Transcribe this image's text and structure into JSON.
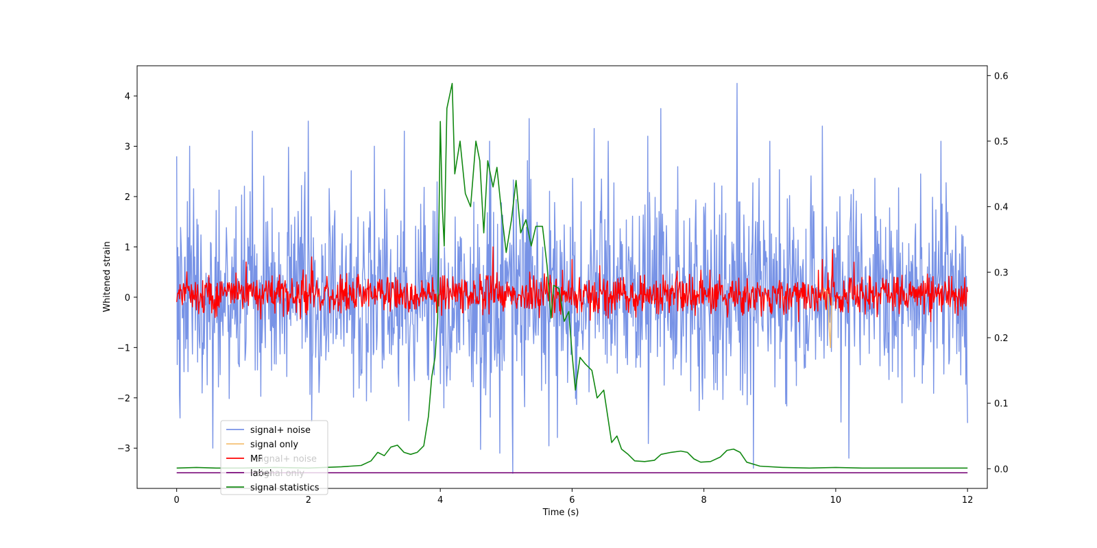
{
  "chart_data": {
    "type": "line",
    "xlabel": "Time (s)",
    "ylabel": "Whitened strain",
    "xlim": [
      -0.6,
      12.3
    ],
    "ylim": [
      -3.8,
      4.6
    ],
    "y2lim": [
      -0.03,
      0.615
    ],
    "x_ticks": [
      0,
      2,
      4,
      6,
      8,
      10,
      12
    ],
    "y_ticks": [
      -3,
      -2,
      -1,
      0,
      1,
      2,
      3,
      4
    ],
    "y2_ticks": [
      0.0,
      0.1,
      0.2,
      0.3,
      0.4,
      0.5,
      0.6
    ],
    "grid": false,
    "legend_position": "lower-left",
    "ghost_legend_text": [
      "signal+ noise",
      "signal only"
    ],
    "series": [
      {
        "name": "signal+ noise",
        "color": "#7893e6",
        "axis": "left",
        "kind": "noise",
        "x_range": [
          0,
          12
        ],
        "envelope_95": [
          -2.0,
          2.1
        ],
        "spikes": [
          [
            0.0,
            2.8
          ],
          [
            0.05,
            -2.4
          ],
          [
            0.2,
            3.0
          ],
          [
            0.55,
            -3.0
          ],
          [
            1.15,
            3.3
          ],
          [
            2.0,
            3.5
          ],
          [
            3.0,
            3.0
          ],
          [
            3.45,
            3.3
          ],
          [
            4.75,
            3.1
          ],
          [
            4.9,
            -3.1
          ],
          [
            5.1,
            -3.5
          ],
          [
            5.35,
            3.55
          ],
          [
            6.55,
            3.1
          ],
          [
            7.15,
            3.2
          ],
          [
            7.35,
            3.75
          ],
          [
            8.5,
            4.25
          ],
          [
            8.75,
            -3.4
          ],
          [
            9.0,
            3.1
          ],
          [
            9.8,
            3.4
          ],
          [
            10.2,
            -3.2
          ],
          [
            11.6,
            3.1
          ],
          [
            12.0,
            -2.5
          ]
        ]
      },
      {
        "name": "signal only",
        "color": "#f5c172",
        "axis": "left",
        "kind": "chirp",
        "points": [
          [
            9.78,
            0.0
          ],
          [
            9.82,
            0.18
          ],
          [
            9.85,
            -0.25
          ],
          [
            9.88,
            0.35
          ],
          [
            9.9,
            -0.6
          ],
          [
            9.92,
            -1.0
          ],
          [
            9.94,
            0.0
          ]
        ]
      },
      {
        "name": "MF",
        "color": "#ff0000",
        "axis": "left",
        "kind": "noise",
        "x_range": [
          0,
          12
        ],
        "envelope_95": [
          -0.33,
          0.45
        ],
        "spikes": [
          [
            1.05,
            0.7
          ],
          [
            2.05,
            0.8
          ],
          [
            4.8,
            1.0
          ],
          [
            6.0,
            0.75
          ],
          [
            9.8,
            0.75
          ],
          [
            9.95,
            0.95
          ],
          [
            5.7,
            -0.4
          ]
        ]
      },
      {
        "name": "label",
        "color": "#7a0a7a",
        "axis": "left",
        "kind": "line",
        "points": [
          [
            0.0,
            -3.49
          ],
          [
            12.0,
            -3.49
          ]
        ]
      },
      {
        "name": "signal statistics",
        "color": "#118811",
        "axis": "right",
        "kind": "line",
        "points": [
          [
            0.0,
            0.001
          ],
          [
            0.3,
            0.002
          ],
          [
            0.6,
            0.001
          ],
          [
            1.0,
            0.001
          ],
          [
            1.5,
            0.002
          ],
          [
            2.0,
            0.001
          ],
          [
            2.5,
            0.003
          ],
          [
            2.8,
            0.005
          ],
          [
            2.95,
            0.012
          ],
          [
            3.05,
            0.025
          ],
          [
            3.15,
            0.02
          ],
          [
            3.25,
            0.033
          ],
          [
            3.35,
            0.036
          ],
          [
            3.45,
            0.025
          ],
          [
            3.55,
            0.022
          ],
          [
            3.65,
            0.025
          ],
          [
            3.75,
            0.035
          ],
          [
            3.82,
            0.08
          ],
          [
            3.87,
            0.14
          ],
          [
            3.92,
            0.17
          ],
          [
            3.96,
            0.23
          ],
          [
            4.0,
            0.53
          ],
          [
            4.03,
            0.4
          ],
          [
            4.06,
            0.34
          ],
          [
            4.1,
            0.55
          ],
          [
            4.18,
            0.588
          ],
          [
            4.22,
            0.45
          ],
          [
            4.3,
            0.5
          ],
          [
            4.38,
            0.42
          ],
          [
            4.46,
            0.4
          ],
          [
            4.54,
            0.5
          ],
          [
            4.6,
            0.47
          ],
          [
            4.66,
            0.36
          ],
          [
            4.72,
            0.47
          ],
          [
            4.8,
            0.43
          ],
          [
            4.86,
            0.46
          ],
          [
            4.93,
            0.39
          ],
          [
            5.0,
            0.33
          ],
          [
            5.08,
            0.38
          ],
          [
            5.15,
            0.44
          ],
          [
            5.22,
            0.36
          ],
          [
            5.3,
            0.38
          ],
          [
            5.38,
            0.34
          ],
          [
            5.45,
            0.37
          ],
          [
            5.55,
            0.37
          ],
          [
            5.62,
            0.31
          ],
          [
            5.68,
            0.23
          ],
          [
            5.72,
            0.28
          ],
          [
            5.8,
            0.275
          ],
          [
            5.88,
            0.225
          ],
          [
            5.95,
            0.24
          ],
          [
            6.0,
            0.175
          ],
          [
            6.05,
            0.12
          ],
          [
            6.12,
            0.17
          ],
          [
            6.2,
            0.16
          ],
          [
            6.3,
            0.15
          ],
          [
            6.38,
            0.108
          ],
          [
            6.48,
            0.12
          ],
          [
            6.6,
            0.04
          ],
          [
            6.68,
            0.05
          ],
          [
            6.75,
            0.03
          ],
          [
            6.85,
            0.022
          ],
          [
            6.95,
            0.012
          ],
          [
            7.1,
            0.011
          ],
          [
            7.25,
            0.013
          ],
          [
            7.35,
            0.022
          ],
          [
            7.5,
            0.025
          ],
          [
            7.65,
            0.027
          ],
          [
            7.75,
            0.025
          ],
          [
            7.85,
            0.015
          ],
          [
            7.95,
            0.01
          ],
          [
            8.1,
            0.011
          ],
          [
            8.25,
            0.018
          ],
          [
            8.35,
            0.028
          ],
          [
            8.45,
            0.03
          ],
          [
            8.55,
            0.025
          ],
          [
            8.65,
            0.01
          ],
          [
            8.85,
            0.004
          ],
          [
            9.2,
            0.002
          ],
          [
            9.6,
            0.001
          ],
          [
            10.0,
            0.002
          ],
          [
            10.4,
            0.001
          ],
          [
            11.0,
            0.001
          ],
          [
            12.0,
            0.001
          ]
        ]
      }
    ]
  }
}
